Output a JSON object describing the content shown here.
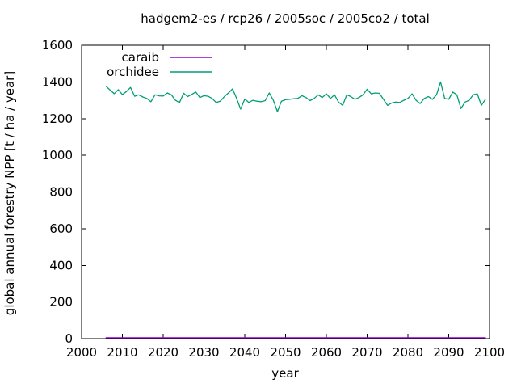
{
  "figure": {
    "background": "#ffffff",
    "border_color": "#000000",
    "text_color": "#000000"
  },
  "chart_data": {
    "type": "line",
    "title": "hadgem2-es / rcp26 / 2005soc / 2005co2 / total",
    "xlabel": "year",
    "ylabel": "global annual forestry NPP [t / ha / year]",
    "xlim": [
      2000,
      2100
    ],
    "ylim": [
      0,
      1600
    ],
    "xticks": [
      2000,
      2010,
      2020,
      2030,
      2040,
      2050,
      2060,
      2070,
      2080,
      2090,
      2100
    ],
    "yticks": [
      0,
      200,
      400,
      600,
      800,
      1000,
      1200,
      1400,
      1600
    ],
    "grid": false,
    "legend_position": "top-left-inside",
    "x": [
      2006,
      2007,
      2008,
      2009,
      2010,
      2011,
      2012,
      2013,
      2014,
      2015,
      2016,
      2017,
      2018,
      2019,
      2020,
      2021,
      2022,
      2023,
      2024,
      2025,
      2026,
      2027,
      2028,
      2029,
      2030,
      2031,
      2032,
      2033,
      2034,
      2035,
      2036,
      2037,
      2038,
      2039,
      2040,
      2041,
      2042,
      2043,
      2044,
      2045,
      2046,
      2047,
      2048,
      2049,
      2050,
      2051,
      2052,
      2053,
      2054,
      2055,
      2056,
      2057,
      2058,
      2059,
      2060,
      2061,
      2062,
      2063,
      2064,
      2065,
      2066,
      2067,
      2068,
      2069,
      2070,
      2071,
      2072,
      2073,
      2074,
      2075,
      2076,
      2077,
      2078,
      2079,
      2080,
      2081,
      2082,
      2083,
      2084,
      2085,
      2086,
      2087,
      2088,
      2089,
      2090,
      2091,
      2092,
      2093,
      2094,
      2095,
      2096,
      2097,
      2098,
      2099
    ],
    "series": [
      {
        "name": "caraib",
        "color": "#9400d3",
        "values": [
          5,
          5,
          5,
          5,
          5,
          5,
          5,
          5,
          5,
          5,
          5,
          5,
          5,
          5,
          5,
          5,
          5,
          5,
          5,
          5,
          5,
          5,
          5,
          5,
          5,
          5,
          5,
          5,
          5,
          5,
          5,
          5,
          5,
          5,
          5,
          5,
          5,
          5,
          5,
          5,
          5,
          5,
          5,
          5,
          5,
          5,
          5,
          5,
          5,
          5,
          5,
          5,
          5,
          5,
          5,
          5,
          5,
          5,
          5,
          5,
          5,
          5,
          5,
          5,
          5,
          5,
          5,
          5,
          5,
          5,
          5,
          5,
          5,
          5,
          5,
          5,
          5,
          5,
          5,
          5,
          5,
          5,
          5,
          5,
          5,
          5,
          5,
          5,
          5,
          5,
          5,
          5,
          5,
          5
        ]
      },
      {
        "name": "orchidee",
        "color": "#009e73",
        "values": [
          1376,
          1356,
          1336,
          1358,
          1331,
          1348,
          1370,
          1322,
          1330,
          1318,
          1310,
          1292,
          1330,
          1324,
          1323,
          1340,
          1330,
          1300,
          1287,
          1338,
          1320,
          1332,
          1345,
          1315,
          1325,
          1322,
          1310,
          1288,
          1295,
          1320,
          1340,
          1362,
          1310,
          1252,
          1307,
          1288,
          1300,
          1295,
          1292,
          1298,
          1340,
          1300,
          1238,
          1295,
          1303,
          1305,
          1308,
          1310,
          1325,
          1315,
          1298,
          1310,
          1330,
          1315,
          1335,
          1310,
          1330,
          1290,
          1272,
          1330,
          1320,
          1305,
          1315,
          1330,
          1360,
          1335,
          1340,
          1338,
          1305,
          1272,
          1285,
          1290,
          1288,
          1300,
          1310,
          1335,
          1300,
          1282,
          1310,
          1320,
          1305,
          1330,
          1400,
          1310,
          1305,
          1345,
          1330,
          1255,
          1290,
          1300,
          1330,
          1335,
          1272,
          1305
        ]
      }
    ]
  }
}
